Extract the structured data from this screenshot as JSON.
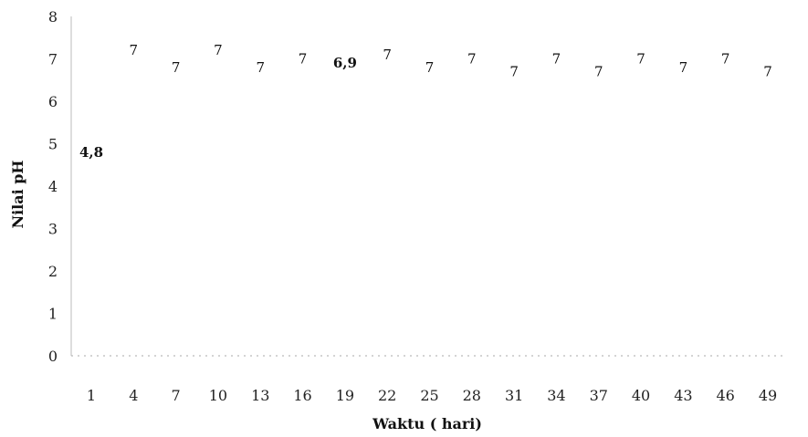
{
  "chart_data": {
    "type": "line",
    "title": "",
    "xlabel": "Waktu ( hari)",
    "ylabel": "Nilai pH",
    "ylim": [
      0,
      8
    ],
    "y_ticks": [
      "0",
      "1",
      "2",
      "3",
      "4",
      "5",
      "6",
      "7",
      "8"
    ],
    "categories": [
      "1",
      "4",
      "7",
      "10",
      "13",
      "16",
      "19",
      "22",
      "25",
      "28",
      "31",
      "34",
      "37",
      "40",
      "43",
      "46",
      "49"
    ],
    "values": [
      4.8,
      7.2,
      6.8,
      7.2,
      6.8,
      7.0,
      6.9,
      7.1,
      6.8,
      7.0,
      6.7,
      7.0,
      6.7,
      7.0,
      6.8,
      7.0,
      6.7
    ],
    "data_labels": [
      "4,8",
      "7",
      "7",
      "7",
      "7",
      "7",
      "6,9",
      "7",
      "7",
      "7",
      "7",
      "7",
      "7",
      "7",
      "7",
      "7",
      "7"
    ],
    "bold_labels": [
      0,
      6
    ],
    "grid": false,
    "legend": "none"
  }
}
